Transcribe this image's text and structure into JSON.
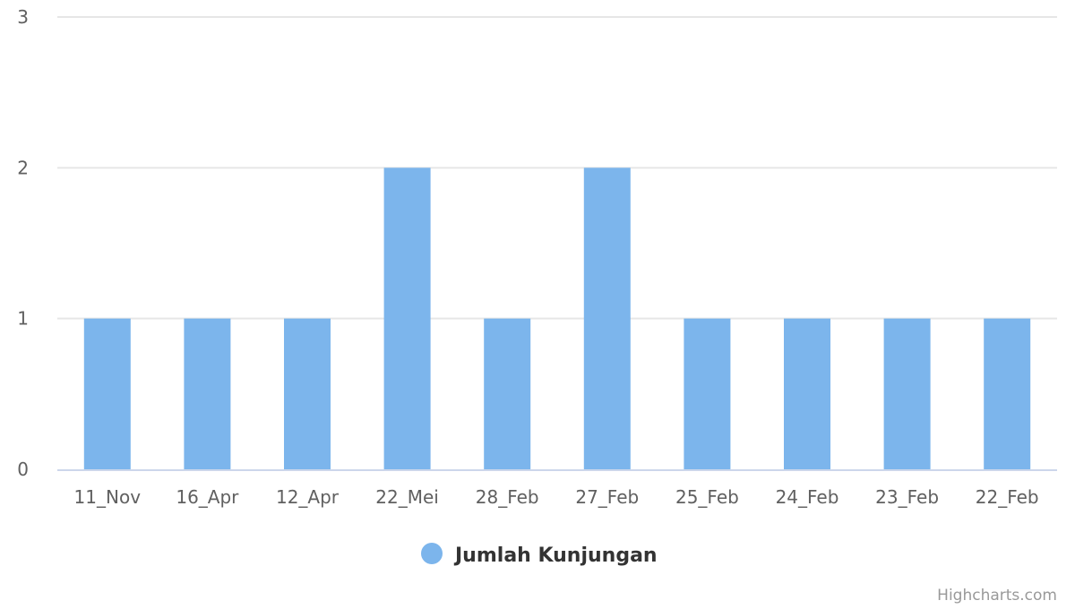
{
  "chart_data": {
    "type": "bar",
    "categories": [
      "11_Nov",
      "16_Apr",
      "12_Apr",
      "22_Mei",
      "28_Feb",
      "27_Feb",
      "25_Feb",
      "24_Feb",
      "23_Feb",
      "22_Feb"
    ],
    "series": [
      {
        "name": "Jumlah Kunjungan",
        "values": [
          1,
          1,
          1,
          2,
          1,
          2,
          1,
          1,
          1,
          1
        ],
        "color": "#7cb5ec"
      }
    ],
    "title": "",
    "xlabel": "",
    "ylabel": "",
    "ylim": [
      0,
      3
    ],
    "yticks": [
      0,
      1,
      2,
      3
    ],
    "grid": true,
    "legend": "bottom-center"
  },
  "credits": "Highcharts.com"
}
